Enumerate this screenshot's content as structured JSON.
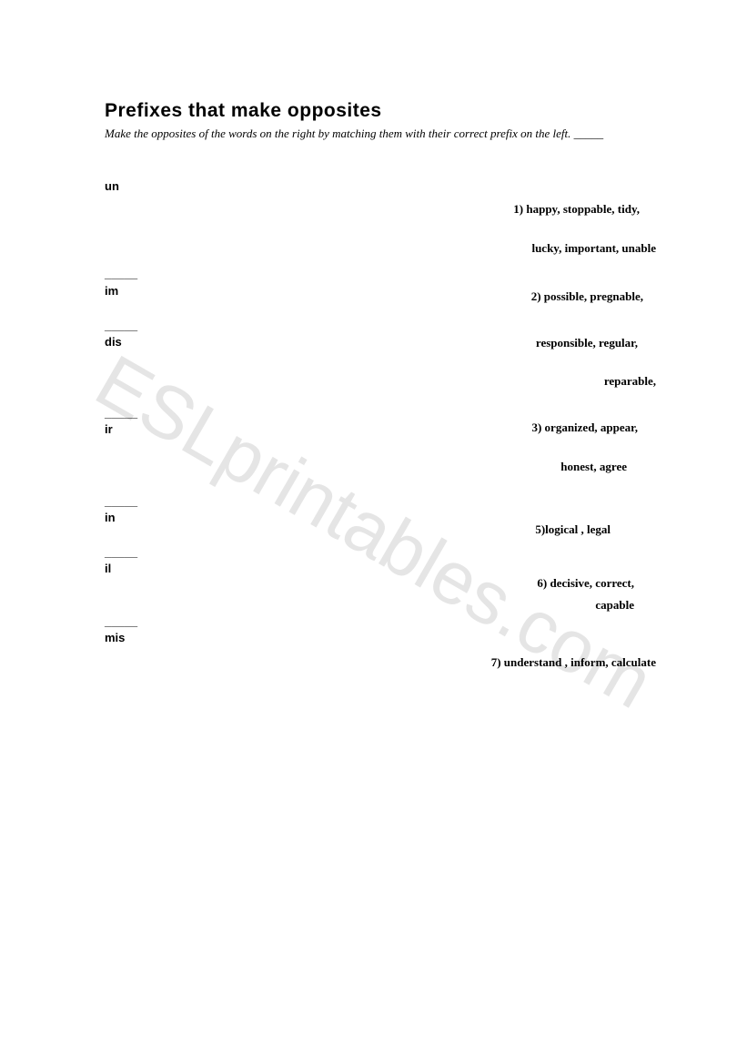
{
  "title": "Prefixes that make opposites",
  "instructions": "Make the opposites of the words on the right by matching them with their correct prefix on the left. _____",
  "prefixes": [
    {
      "label": "un",
      "gap_before": 0,
      "blank_above": false
    },
    {
      "label": "im",
      "gap_before": 78,
      "blank_above": true
    },
    {
      "label": "dis",
      "gap_before": 20,
      "blank_above": true
    },
    {
      "label": "ir",
      "gap_before": 60,
      "blank_above": true
    },
    {
      "label": "in",
      "gap_before": 60,
      "blank_above": true
    },
    {
      "label": "il",
      "gap_before": 20,
      "blank_above": true
    },
    {
      "label": "mis",
      "gap_before": 40,
      "blank_above": true
    }
  ],
  "right_items": [
    {
      "text": "1) happy, stoppable, tidy,",
      "gap_before": 24,
      "indent_right": 18
    },
    {
      "text": "lucky, important, unable",
      "gap_before": 22,
      "indent_right": 0
    },
    {
      "text": "2) possible, pregnable,",
      "gap_before": 32,
      "indent_right": 14
    },
    {
      "text": "responsible, regular,",
      "gap_before": 30,
      "indent_right": 20
    },
    {
      "text": "reparable,",
      "gap_before": 22,
      "indent_right": 0
    },
    {
      "text": "3) organized, appear,",
      "gap_before": 30,
      "indent_right": 20
    },
    {
      "text": "honest, agree",
      "gap_before": 22,
      "indent_right": 32
    },
    {
      "text": "5)logical , legal",
      "gap_before": 48,
      "indent_right": 50
    },
    {
      "text": "6) decisive, correct,",
      "gap_before": 38,
      "indent_right": 24
    },
    {
      "text": "capable",
      "gap_before": 4,
      "indent_right": 24
    },
    {
      "text": "7) understand , inform, calculate",
      "gap_before": 42,
      "indent_right": 0
    }
  ],
  "watermark": "ESLprintables.com",
  "colors": {
    "background": "#ffffff",
    "text": "#000000",
    "watermark": "#e5e5e5"
  }
}
